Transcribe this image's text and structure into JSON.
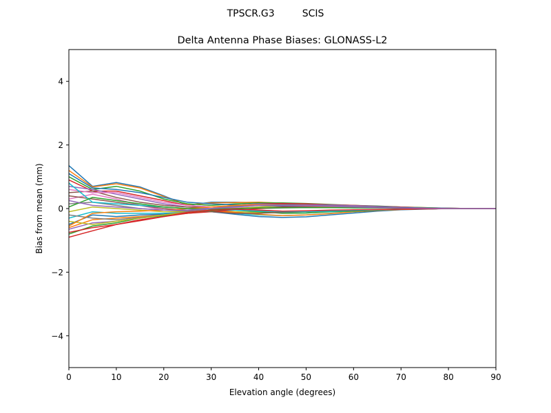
{
  "chart_data": {
    "type": "line",
    "suptitle": "TPSCR.G3         SCIS",
    "title": "Delta Antenna Phase Biases: GLONASS-L2",
    "xlabel": "Elevation angle (degrees)",
    "ylabel": "Bias from mean (mm)",
    "xlim": [
      0,
      90
    ],
    "ylim": [
      -5,
      5
    ],
    "xticks": [
      0,
      10,
      20,
      30,
      40,
      50,
      60,
      70,
      80,
      90
    ],
    "xtick_labels": [
      "0",
      "10",
      "20",
      "30",
      "40",
      "50",
      "60",
      "70",
      "80",
      "90"
    ],
    "yticks": [
      -4,
      -2,
      0,
      2,
      4
    ],
    "ytick_labels": [
      "−4",
      "−2",
      "0",
      "2",
      "4"
    ],
    "grid": false,
    "colors": [
      "#1f77b4",
      "#ff7f0e",
      "#2ca02c",
      "#d62728",
      "#9467bd",
      "#8c564b",
      "#e377c2",
      "#7f7f7f",
      "#bcbd22",
      "#17becf"
    ],
    "x": [
      0,
      5,
      10,
      15,
      20,
      25,
      30,
      35,
      40,
      45,
      50,
      55,
      60,
      65,
      70,
      75,
      80,
      85,
      90
    ],
    "series": [
      {
        "values": [
          1.35,
          0.7,
          0.82,
          0.68,
          0.4,
          0.1,
          0.2,
          0.2,
          0.18,
          0.15,
          0.12,
          0.1,
          0.08,
          0.06,
          0.04,
          0.02,
          0,
          0,
          0
        ]
      },
      {
        "values": [
          1.2,
          0.68,
          0.78,
          0.65,
          0.38,
          0.12,
          0.18,
          0.19,
          0.2,
          0.17,
          0.14,
          0.12,
          0.1,
          0.07,
          0.05,
          0.03,
          0.01,
          0,
          0
        ]
      },
      {
        "values": [
          1.0,
          0.6,
          0.7,
          0.55,
          0.3,
          0.15,
          0.1,
          0.15,
          0.18,
          0.18,
          0.16,
          0.13,
          0.1,
          0.08,
          0.05,
          0.03,
          0.01,
          0,
          0
        ]
      },
      {
        "values": [
          0.9,
          0.55,
          0.55,
          0.4,
          0.25,
          0.1,
          0.05,
          0.1,
          0.15,
          0.16,
          0.15,
          0.12,
          0.1,
          0.07,
          0.05,
          0.02,
          0.01,
          0,
          0
        ]
      },
      {
        "values": [
          0.7,
          0.6,
          0.45,
          0.3,
          0.15,
          0.05,
          0.0,
          0.05,
          0.1,
          0.12,
          0.12,
          0.11,
          0.09,
          0.07,
          0.04,
          0.02,
          0,
          0,
          0
        ]
      },
      {
        "values": [
          0.5,
          0.55,
          0.35,
          0.2,
          0.1,
          0.05,
          0.05,
          0.08,
          0.1,
          0.1,
          0.1,
          0.08,
          0.06,
          0.05,
          0.03,
          0.02,
          0,
          0,
          0
        ]
      },
      {
        "values": [
          0.3,
          0.45,
          0.3,
          0.1,
          -0.05,
          -0.05,
          0.0,
          0.02,
          0.05,
          0.07,
          0.07,
          0.06,
          0.05,
          0.04,
          0.02,
          0.01,
          0,
          0,
          0
        ]
      },
      {
        "values": [
          0.15,
          0.2,
          0.1,
          0.0,
          -0.05,
          -0.08,
          -0.05,
          -0.02,
          0.0,
          0.02,
          0.03,
          0.03,
          0.03,
          0.02,
          0.01,
          0,
          0,
          0,
          0
        ]
      },
      {
        "values": [
          -0.1,
          0.05,
          0.0,
          -0.05,
          -0.1,
          -0.1,
          -0.08,
          -0.1,
          -0.12,
          -0.12,
          -0.1,
          -0.08,
          -0.06,
          -0.04,
          -0.02,
          -0.01,
          0,
          0,
          0
        ]
      },
      {
        "values": [
          -0.3,
          -0.1,
          -0.15,
          -0.15,
          -0.15,
          -0.12,
          -0.1,
          -0.15,
          -0.2,
          -0.22,
          -0.2,
          -0.15,
          -0.1,
          -0.06,
          -0.03,
          -0.01,
          0,
          0,
          0
        ]
      },
      {
        "values": [
          -0.5,
          -0.2,
          -0.25,
          -0.2,
          -0.18,
          -0.12,
          -0.1,
          -0.18,
          -0.25,
          -0.28,
          -0.26,
          -0.2,
          -0.14,
          -0.08,
          -0.04,
          -0.02,
          0,
          0,
          0
        ]
      },
      {
        "values": [
          -0.6,
          -0.35,
          -0.3,
          -0.25,
          -0.2,
          -0.15,
          -0.08,
          -0.12,
          -0.18,
          -0.22,
          -0.2,
          -0.16,
          -0.1,
          -0.06,
          -0.03,
          -0.01,
          0,
          0,
          0
        ]
      },
      {
        "values": [
          -0.8,
          -0.55,
          -0.45,
          -0.3,
          -0.22,
          -0.15,
          -0.08,
          -0.05,
          -0.1,
          -0.15,
          -0.14,
          -0.1,
          -0.08,
          -0.05,
          -0.02,
          -0.01,
          0,
          0,
          0
        ]
      },
      {
        "values": [
          -0.9,
          -0.7,
          -0.5,
          -0.35,
          -0.25,
          -0.15,
          -0.1,
          -0.05,
          0.0,
          0.05,
          0.06,
          0.05,
          0.04,
          0.03,
          0.02,
          0.01,
          0,
          0,
          0
        ]
      },
      {
        "values": [
          -0.65,
          -0.45,
          -0.4,
          -0.3,
          -0.2,
          -0.1,
          0.0,
          0.1,
          0.15,
          0.12,
          0.1,
          0.08,
          0.06,
          0.04,
          0.02,
          0.01,
          0,
          0,
          0
        ]
      },
      {
        "values": [
          0.4,
          0.3,
          0.2,
          0.1,
          0.0,
          -0.05,
          -0.1,
          -0.15,
          -0.15,
          -0.12,
          -0.1,
          -0.08,
          -0.06,
          -0.04,
          -0.02,
          -0.01,
          0,
          0,
          0
        ]
      },
      {
        "values": [
          0.6,
          0.5,
          0.5,
          0.35,
          0.2,
          0.1,
          0.05,
          0.0,
          -0.05,
          -0.08,
          -0.08,
          -0.06,
          -0.05,
          -0.04,
          -0.02,
          -0.01,
          0,
          0,
          0
        ]
      },
      {
        "values": [
          -0.2,
          -0.3,
          -0.35,
          -0.28,
          -0.2,
          -0.1,
          0.0,
          0.08,
          0.12,
          0.12,
          0.1,
          0.08,
          0.06,
          0.04,
          0.02,
          0.01,
          0,
          0,
          0
        ]
      },
      {
        "values": [
          -0.4,
          -0.5,
          -0.4,
          -0.3,
          -0.2,
          -0.12,
          -0.05,
          0.0,
          0.05,
          0.08,
          0.08,
          0.06,
          0.05,
          0.03,
          0.02,
          0.01,
          0,
          0,
          0
        ]
      },
      {
        "values": [
          0.8,
          0.2,
          0.15,
          0.1,
          0.05,
          0.0,
          -0.02,
          -0.05,
          -0.08,
          -0.1,
          -0.1,
          -0.08,
          -0.06,
          -0.04,
          -0.02,
          -0.01,
          0,
          0,
          0
        ]
      },
      {
        "values": [
          1.1,
          0.65,
          0.6,
          0.5,
          0.35,
          0.2,
          0.15,
          0.12,
          0.1,
          0.08,
          0.07,
          0.06,
          0.05,
          0.04,
          0.03,
          0.02,
          0.01,
          0,
          0
        ]
      },
      {
        "values": [
          -0.55,
          -0.15,
          -0.1,
          -0.08,
          -0.05,
          0.0,
          0.05,
          0.1,
          0.12,
          0.1,
          0.08,
          0.06,
          0.05,
          0.03,
          0.02,
          0.01,
          0,
          0,
          0
        ]
      },
      {
        "values": [
          0.05,
          0.35,
          0.25,
          0.15,
          0.05,
          0.0,
          -0.02,
          0.0,
          0.02,
          0.03,
          0.03,
          0.03,
          0.02,
          0.02,
          0.01,
          0,
          0,
          0,
          0
        ]
      },
      {
        "values": [
          -0.75,
          -0.6,
          -0.5,
          -0.38,
          -0.25,
          -0.12,
          -0.05,
          -0.02,
          -0.05,
          -0.08,
          -0.07,
          -0.05,
          -0.04,
          -0.03,
          -0.02,
          -0.01,
          0,
          0,
          0
        ]
      },
      {
        "values": [
          0.25,
          0.1,
          0.05,
          0.0,
          -0.05,
          -0.05,
          0.0,
          0.05,
          0.1,
          0.1,
          0.09,
          0.07,
          0.05,
          0.03,
          0.02,
          0.01,
          0,
          0,
          0
        ]
      }
    ]
  }
}
